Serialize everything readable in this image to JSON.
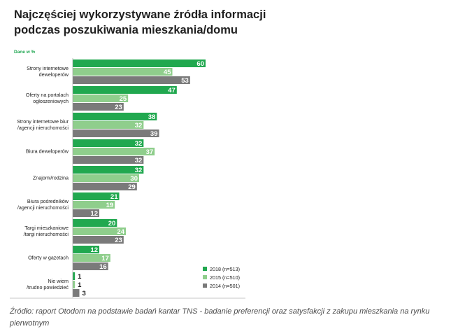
{
  "page": {
    "title_line1": "Najczęściej wykorzystywane źródła informacji",
    "title_line2": "podczas poszukiwania mieszkania/domu",
    "unit_note": "Dane w %",
    "source": "Źródło: raport Otodom na podstawie badań kantar TNS - badanie preferencji oraz satysfakcji z zakupu mieszkania na rynku pierwotnym"
  },
  "chart_data": {
    "type": "bar",
    "orientation": "horizontal",
    "title": "Najczęściej wykorzystywane źródła informacji podczas poszukiwania mieszkania/domu",
    "unit": "Dane w %",
    "categories": [
      [
        "Strony internetowe",
        "deweloperów"
      ],
      [
        "Oferty na portalach",
        "ogłoszeniowych"
      ],
      [
        "Strony internetowe biur",
        "/agencji nieruchomości"
      ],
      [
        "Biura deweloperów"
      ],
      [
        "Znajomi/rodzina"
      ],
      [
        "Biura pośredników",
        "/agencji nieruchomości"
      ],
      [
        "Targi mieszkaniowe",
        "/targi nieruchomości"
      ],
      [
        "Oferty w gazetach"
      ],
      [
        "Nie wiem",
        "/trudno powiedzieć"
      ]
    ],
    "series": [
      {
        "name": "2018 (n=513)",
        "color": "#21a84f",
        "values": [
          60,
          47,
          38,
          32,
          32,
          21,
          20,
          12,
          1
        ]
      },
      {
        "name": "2015 (n=510)",
        "color": "#8fce8c",
        "values": [
          45,
          25,
          32,
          37,
          30,
          19,
          24,
          17,
          1
        ]
      },
      {
        "name": "2014 (n=501)",
        "color": "#7a7a7a",
        "values": [
          53,
          23,
          39,
          32,
          29,
          12,
          23,
          16,
          3
        ]
      }
    ],
    "xlim": [
      0,
      60
    ],
    "legend_position": "bottom-right",
    "grid": false
  }
}
